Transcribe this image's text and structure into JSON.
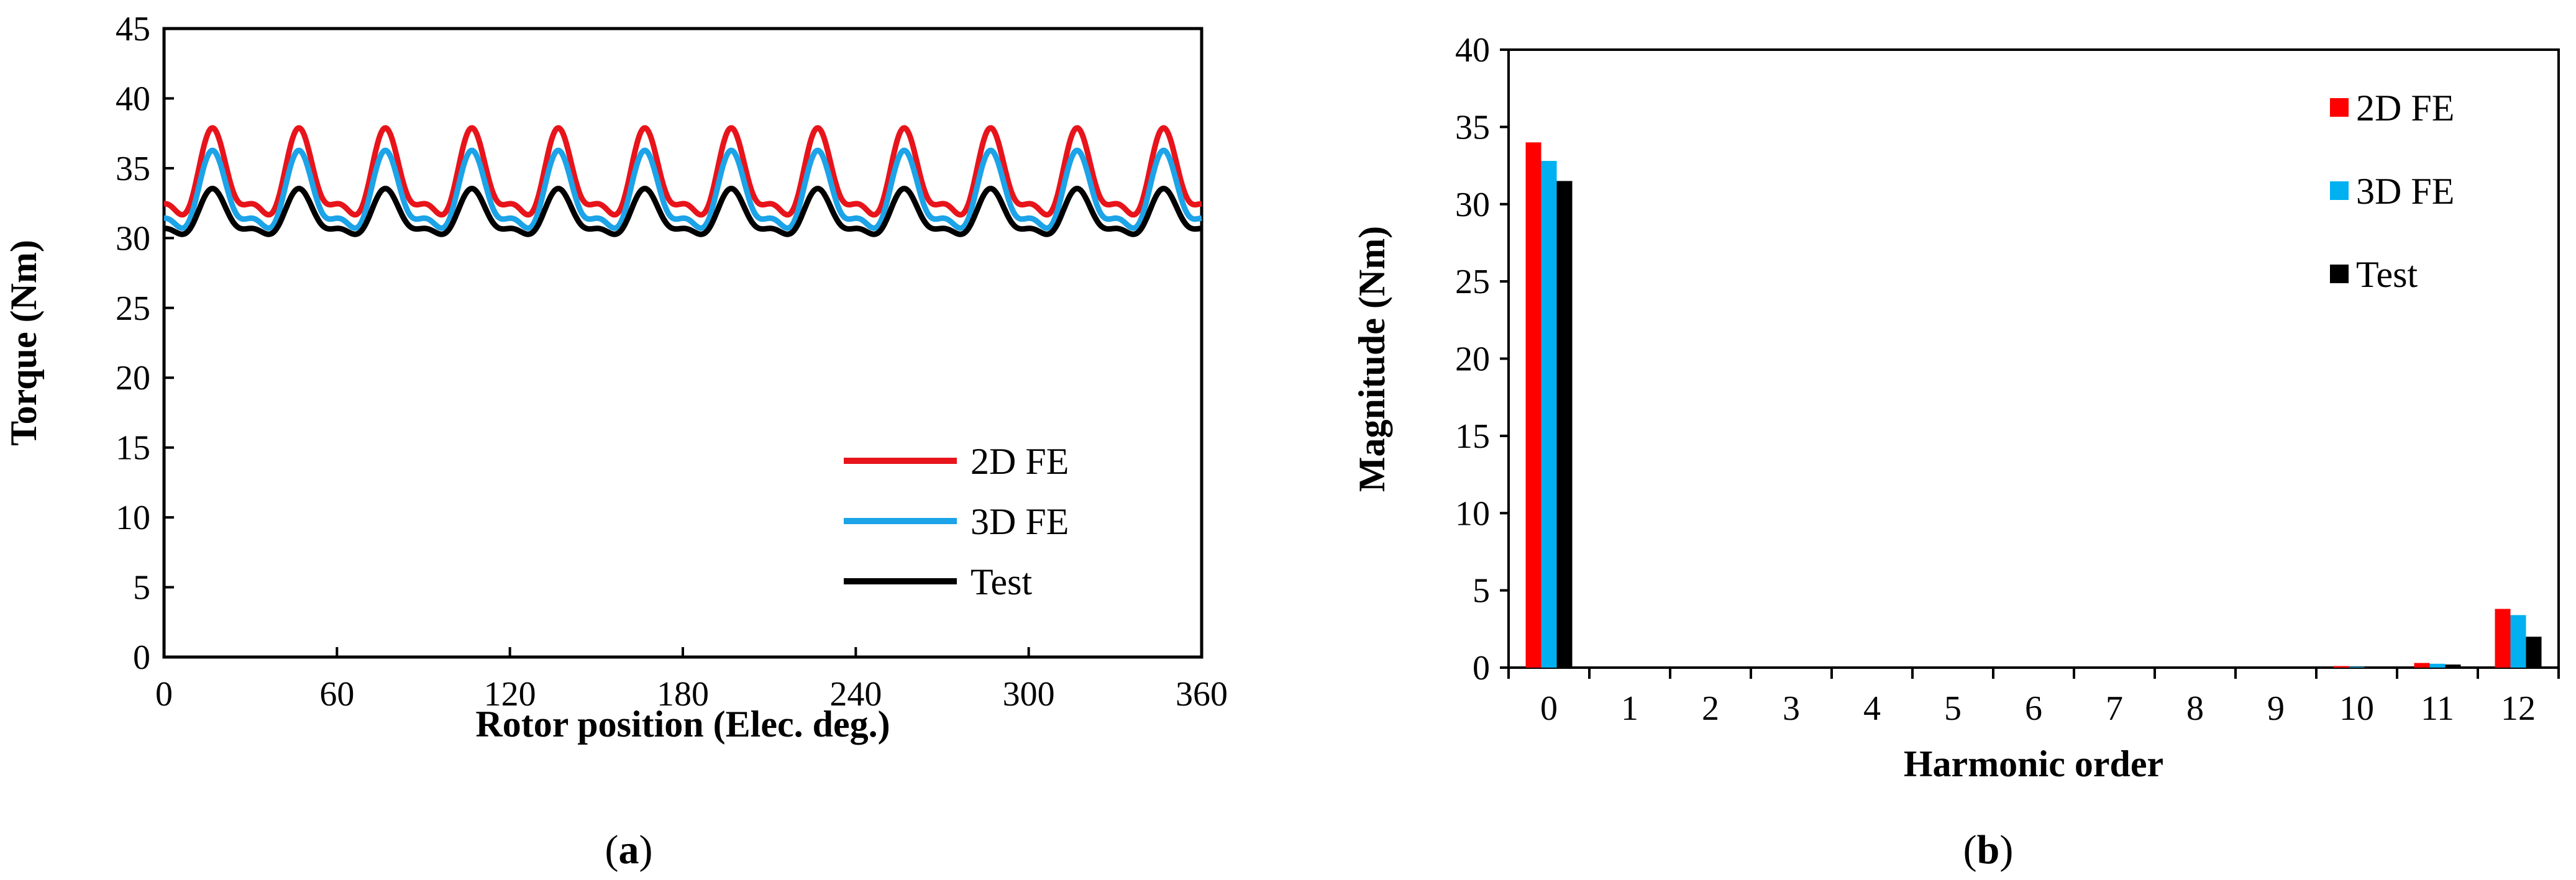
{
  "chart_data": [
    {
      "type": "line",
      "title": "",
      "xlabel": "Rotor position (Elec. deg.)",
      "ylabel": "Torque (Nm)",
      "xlim": [
        0,
        360
      ],
      "ylim": [
        0,
        45
      ],
      "xticks": [
        "0",
        "60",
        "120",
        "180",
        "240",
        "300",
        "360"
      ],
      "yticks": [
        "0",
        "5",
        "10",
        "15",
        "20",
        "25",
        "30",
        "35",
        "40",
        "45"
      ],
      "grid": false,
      "legend_position": "bottom-right",
      "panel_label": {
        "open": "(",
        "letter": "a",
        "close": ")"
      },
      "series": [
        {
          "name": "2D FE",
          "color": "#e8141b",
          "mean": 34.0,
          "amplitude": 3.8,
          "period_deg": 30,
          "phase_deg": 0
        },
        {
          "name": "3D FE",
          "color": "#1ca3e8",
          "mean": 32.8,
          "amplitude": 3.4,
          "period_deg": 30,
          "phase_deg": 0
        },
        {
          "name": "Test",
          "color": "#000000",
          "mean": 31.5,
          "amplitude": 2.0,
          "period_deg": 30,
          "phase_deg": 0
        }
      ]
    },
    {
      "type": "bar",
      "title": "",
      "xlabel": "Harmonic order",
      "ylabel": "Magnitude (Nm)",
      "ylim": [
        0,
        40
      ],
      "yticks": [
        "0",
        "5",
        "10",
        "15",
        "20",
        "25",
        "30",
        "35",
        "40"
      ],
      "categories": [
        "0",
        "1",
        "2",
        "3",
        "4",
        "5",
        "6",
        "7",
        "8",
        "9",
        "10",
        "11",
        "12"
      ],
      "grid": false,
      "legend_position": "top-right",
      "panel_label": {
        "open": "(",
        "letter": "b",
        "close": ")"
      },
      "series": [
        {
          "name": "2D FE",
          "color": "#ff0000",
          "values": [
            34.0,
            0,
            0,
            0,
            0,
            0,
            0,
            0,
            0,
            0,
            0.1,
            0.3,
            3.8
          ]
        },
        {
          "name": "3D FE",
          "color": "#00b0f0",
          "values": [
            32.8,
            0,
            0,
            0,
            0,
            0,
            0,
            0,
            0,
            0,
            0.05,
            0.25,
            3.4
          ]
        },
        {
          "name": "Test",
          "color": "#000000",
          "values": [
            31.5,
            0,
            0,
            0,
            0,
            0,
            0,
            0,
            0,
            0,
            0.05,
            0.2,
            2.0
          ]
        }
      ]
    }
  ]
}
